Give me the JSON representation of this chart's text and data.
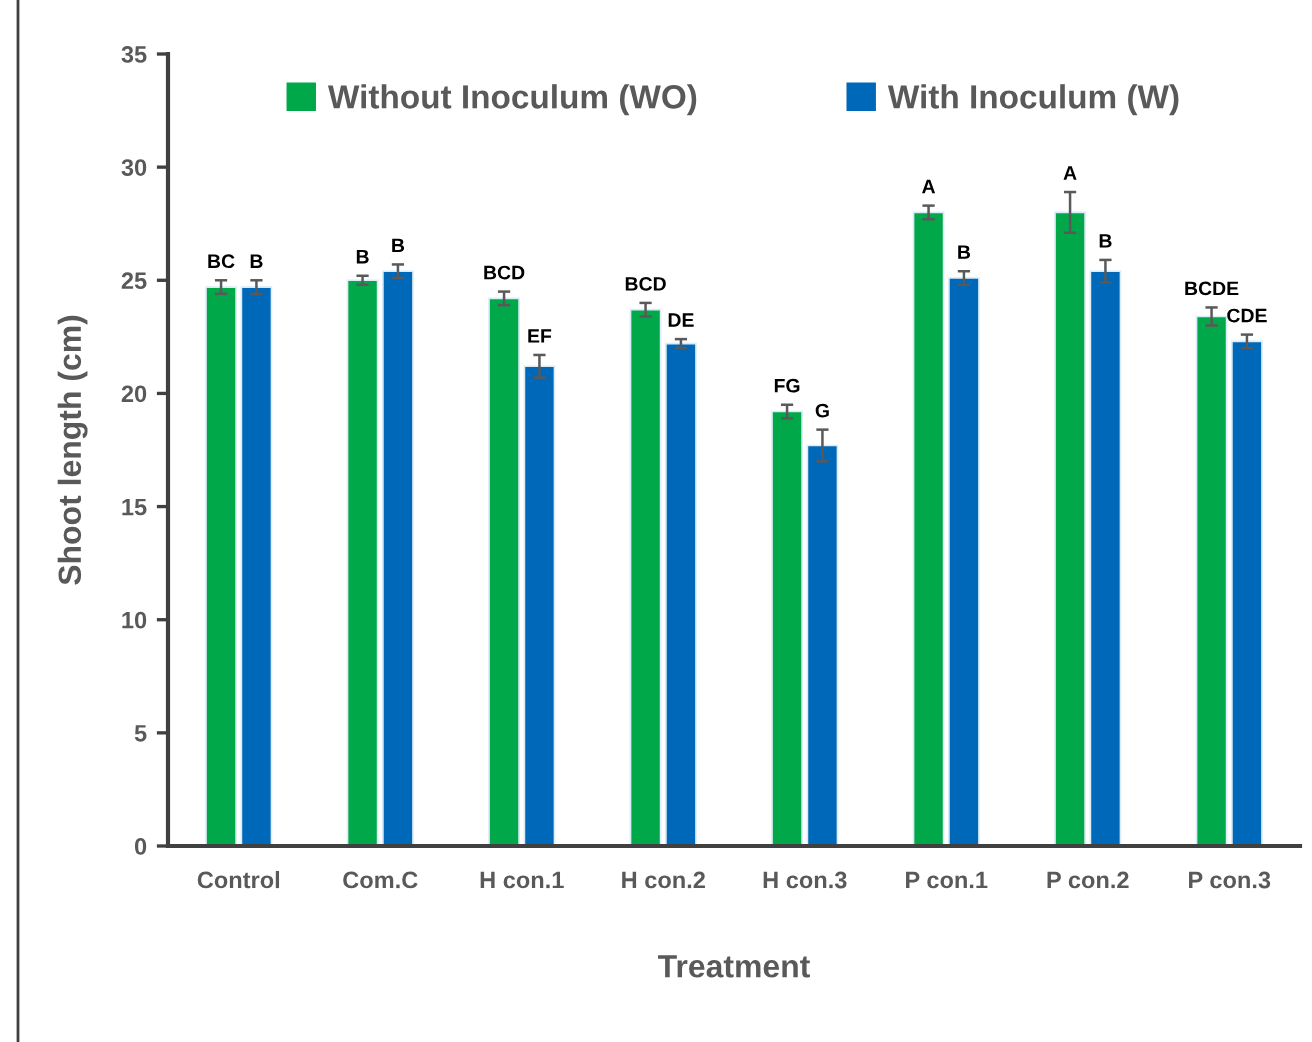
{
  "chart_data": {
    "type": "bar",
    "xlabel": "Treatment",
    "ylabel": "Shoot length (cm)",
    "categories": [
      "Control",
      "Com.C",
      "H con.1",
      "H con.2",
      "H con.3",
      "P con.1",
      "P con.2",
      "P con.3"
    ],
    "series": [
      {
        "name": "Without Inoculum (WO)",
        "color": "#00a84a",
        "values": [
          24.7,
          25.0,
          24.2,
          23.7,
          19.2,
          28.0,
          28.0,
          23.4
        ],
        "errors": [
          0.3,
          0.2,
          0.3,
          0.3,
          0.3,
          0.3,
          0.9,
          0.4
        ],
        "value_labels": [
          "BC",
          "B",
          "BCD",
          "BCD",
          "FG",
          "A",
          "A",
          "BCDE"
        ]
      },
      {
        "name": "With Inoculum (W)",
        "color": "#0068b8",
        "values": [
          24.7,
          25.4,
          21.2,
          22.2,
          17.7,
          25.1,
          25.4,
          22.3
        ],
        "errors": [
          0.3,
          0.3,
          0.5,
          0.2,
          0.7,
          0.3,
          0.5,
          0.3
        ],
        "value_labels": [
          "B",
          "B",
          "EF",
          "DE",
          "G",
          "B",
          "B",
          "CDE"
        ]
      }
    ],
    "ylim": [
      0,
      35
    ],
    "yticks": [
      0,
      5,
      10,
      15,
      20,
      25,
      30,
      35
    ],
    "legend": "top"
  }
}
